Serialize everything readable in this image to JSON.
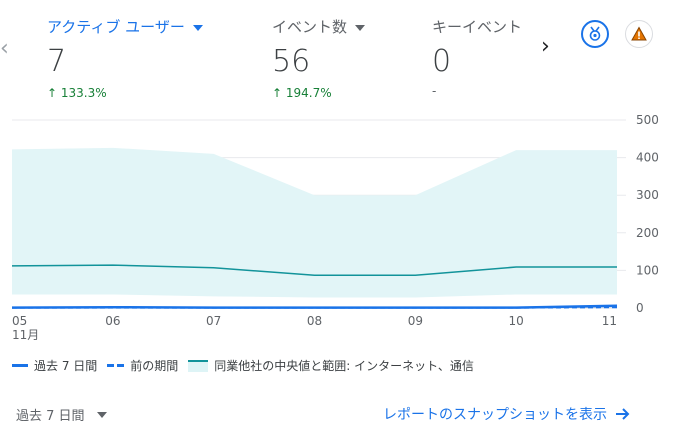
{
  "metrics": [
    {
      "label": "アクティブ ユーザー",
      "value": "7",
      "change": "133.3%",
      "trend": "up",
      "active": true
    },
    {
      "label": "イベント数",
      "value": "56",
      "change": "194.7%",
      "trend": "up",
      "active": false
    },
    {
      "label": "キーイベント",
      "value": "0",
      "change": "-",
      "trend": "none",
      "active": false
    }
  ],
  "nav": {
    "prev_icon": "chevron-left",
    "next_icon": "chevron-right"
  },
  "buttons": {
    "insight_icon": "badge-icon",
    "warning_icon": "warning-icon"
  },
  "chart_data": {
    "type": "line",
    "categories": [
      "05",
      "06",
      "07",
      "08",
      "09",
      "10",
      "11"
    ],
    "x_tick_labels": [
      "05",
      "06",
      "07",
      "08",
      "09",
      "10",
      "11"
    ],
    "x_month_label": "11月",
    "y_ticks": [
      "0",
      "100",
      "200",
      "300",
      "400",
      "500"
    ],
    "ylim": [
      0,
      500
    ],
    "series": [
      {
        "name": "過去 7 日間",
        "values": [
          1,
          2,
          1,
          1,
          1,
          1,
          6
        ],
        "color": "#1a73e8",
        "style": "solid"
      },
      {
        "name": "前の期間",
        "values": [
          1,
          1,
          1,
          1,
          1,
          1,
          2
        ],
        "color": "#1a73e8",
        "style": "dashed"
      },
      {
        "name": "同業他社の中央値と範囲: インターネット、通信",
        "values": [
          112,
          114,
          107,
          87,
          87,
          109,
          109
        ],
        "color": "#12939a",
        "style": "band",
        "band_upper": [
          422,
          426,
          410,
          300,
          300,
          420,
          420
        ],
        "band_lower": [
          36,
          36,
          31,
          28,
          28,
          36,
          36
        ]
      }
    ],
    "legend_position": "bottom",
    "grid": true
  },
  "footer": {
    "range_label": "過去 7 日間",
    "link_label": "レポートのスナップショットを表示"
  }
}
